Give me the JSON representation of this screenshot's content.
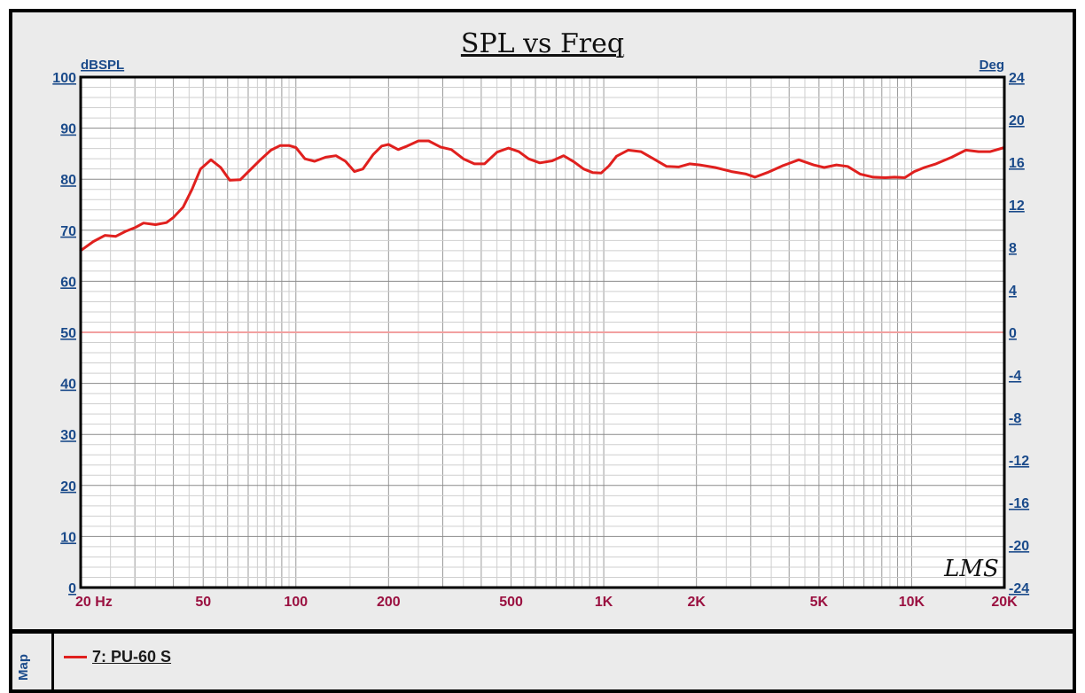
{
  "chart_data": {
    "type": "line",
    "title": "SPL vs Freq",
    "ylabel": "dBSPL",
    "y2label": "Deg",
    "xscale": "log",
    "xlim": [
      20,
      20000
    ],
    "ylim": [
      0,
      100
    ],
    "y2lim": [
      -24,
      24
    ],
    "grid": true,
    "x_tick_labels": [
      {
        "value": 20,
        "label": "20  Hz"
      },
      {
        "value": 50,
        "label": "50"
      },
      {
        "value": 100,
        "label": "100"
      },
      {
        "value": 200,
        "label": "200"
      },
      {
        "value": 500,
        "label": "500"
      },
      {
        "value": 1000,
        "label": "1K"
      },
      {
        "value": 2000,
        "label": "2K"
      },
      {
        "value": 5000,
        "label": "5K"
      },
      {
        "value": 10000,
        "label": "10K"
      },
      {
        "value": 20000,
        "label": "20K"
      }
    ],
    "y_ticks": [
      0,
      10,
      20,
      30,
      40,
      50,
      60,
      70,
      80,
      90,
      100
    ],
    "y2_ticks": [
      -24,
      -20,
      -16,
      -12,
      -8,
      -4,
      0,
      4,
      8,
      12,
      16,
      20,
      24
    ],
    "series": [
      {
        "name": "7: PU-60 S",
        "color": "#e0201e",
        "x": [
          20,
          22,
          24,
          26,
          28,
          30,
          32,
          35,
          38,
          40,
          43,
          46,
          49,
          53,
          57,
          61,
          66,
          71,
          77,
          83,
          89,
          95,
          100,
          107,
          115,
          125,
          135,
          145,
          155,
          165,
          178,
          190,
          200,
          215,
          230,
          250,
          270,
          295,
          320,
          350,
          380,
          410,
          450,
          490,
          530,
          570,
          620,
          680,
          740,
          800,
          860,
          920,
          980,
          1040,
          1100,
          1200,
          1320,
          1450,
          1600,
          1750,
          1900,
          2050,
          2300,
          2600,
          2900,
          3100,
          3400,
          3800,
          4300,
          4800,
          5200,
          5700,
          6200,
          6800,
          7500,
          8200,
          8800,
          9500,
          10200,
          11000,
          12000,
          13500,
          15000,
          16500,
          18000,
          20000
        ],
        "y": [
          66,
          67.8,
          69,
          68.8,
          69.8,
          70.5,
          71.4,
          71.1,
          71.5,
          72.5,
          74.5,
          78,
          82,
          83.8,
          82.3,
          79.8,
          79.9,
          81.8,
          83.9,
          85.7,
          86.6,
          86.6,
          86.2,
          84,
          83.5,
          84.3,
          84.6,
          83.5,
          81.5,
          82,
          84.8,
          86.5,
          86.8,
          85.8,
          86.5,
          87.5,
          87.5,
          86.3,
          85.8,
          84,
          83,
          83,
          85.3,
          86.1,
          85.4,
          84,
          83.2,
          83.6,
          84.6,
          83.4,
          82,
          81.3,
          81.2,
          82.6,
          84.5,
          85.7,
          85.4,
          84,
          82.5,
          82.4,
          83,
          82.8,
          82.3,
          81.5,
          81,
          80.4,
          81.3,
          82.6,
          83.8,
          82.8,
          82.3,
          82.8,
          82.5,
          81,
          80.4,
          80.3,
          80.4,
          80.3,
          81.5,
          82.3,
          83,
          84.3,
          85.7,
          85.4,
          85.4,
          86.2
        ]
      },
      {
        "name": "",
        "color": "#f2a0a0",
        "axis": "y2",
        "x": [
          20,
          20000
        ],
        "y": [
          0,
          0
        ]
      }
    ],
    "annotation": "LMS"
  },
  "map": {
    "label": "Map",
    "legend_item": "7: PU-60 S"
  },
  "colors": {
    "axis_label_blue": "#1a4a8a",
    "x_label_maroon": "#9a1040",
    "trace_red": "#e0201e",
    "phase_pink": "#f2a0a0"
  }
}
